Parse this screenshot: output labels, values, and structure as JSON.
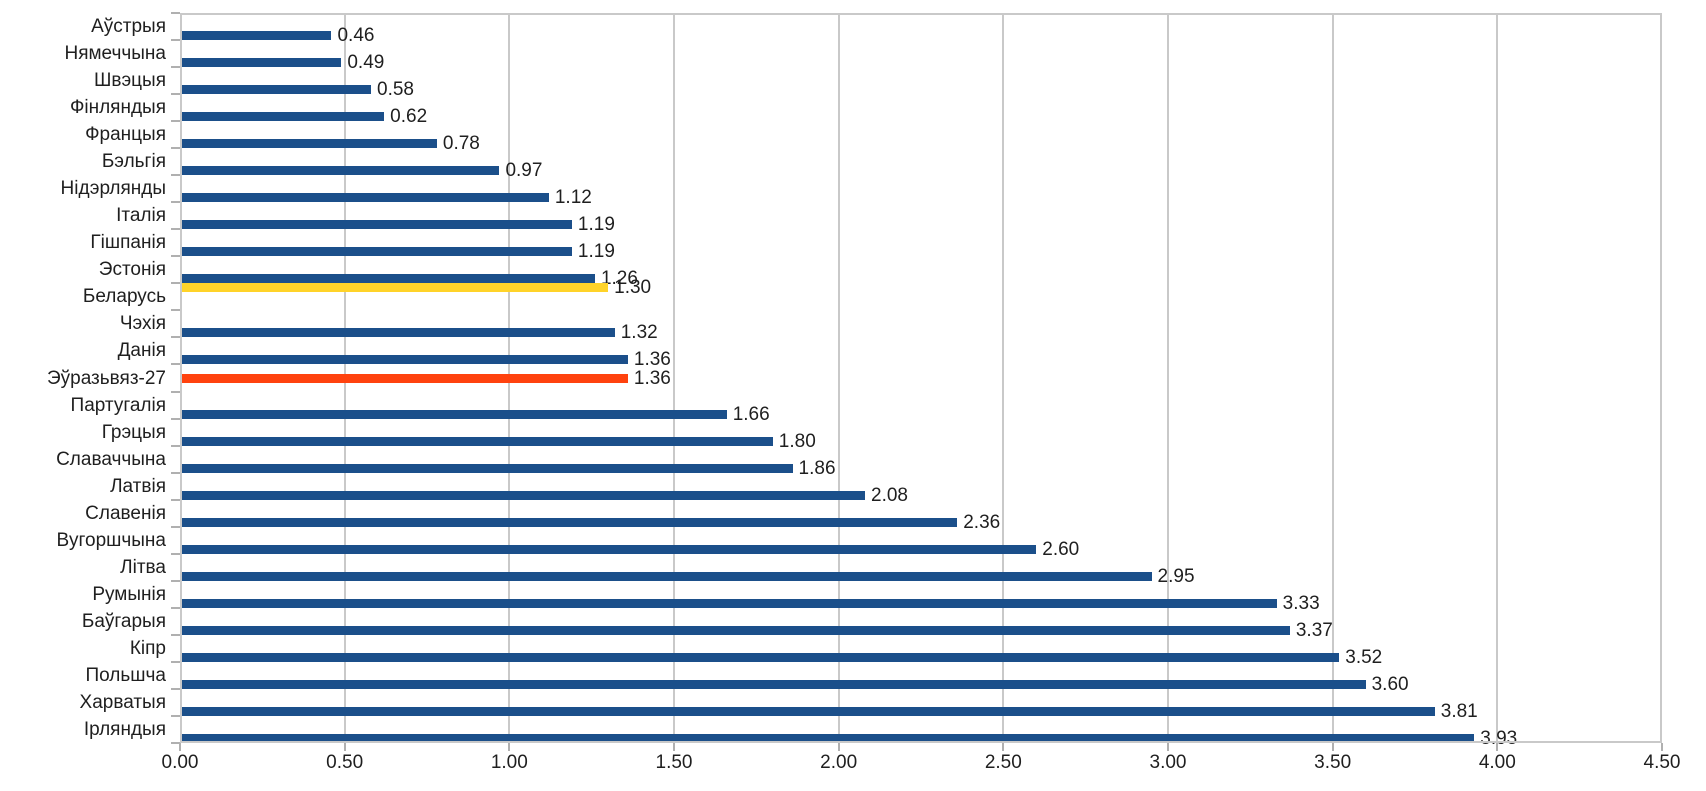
{
  "chart_data": {
    "type": "bar",
    "orientation": "horizontal",
    "title": "",
    "xlabel": "",
    "ylabel": "",
    "xlim": [
      0,
      4.5
    ],
    "x_ticks": [
      0,
      0.5,
      1.0,
      1.5,
      2.0,
      2.5,
      3.0,
      3.5,
      4.0,
      4.5
    ],
    "x_tick_labels": [
      "0.00",
      "0.50",
      "1.00",
      "1.50",
      "2.00",
      "2.50",
      "3.00",
      "3.50",
      "4.00",
      "4.50"
    ],
    "grid": "vertical-gridlines-on",
    "legend": "none",
    "value_labels": "right-of-bar, two decimals",
    "palette": {
      "blue": "#1b4f8a",
      "yellow": "#ffd329",
      "orange": "#ff420e"
    },
    "series_slots": {
      "yellow": 0,
      "orange": 1,
      "blue": 2
    },
    "bars": [
      {
        "label": "Аўстрыя",
        "value": 0.46,
        "series": "blue"
      },
      {
        "label": "Нямеччына",
        "value": 0.49,
        "series": "blue"
      },
      {
        "label": "Швэцыя",
        "value": 0.58,
        "series": "blue"
      },
      {
        "label": "Фінляндыя",
        "value": 0.62,
        "series": "blue"
      },
      {
        "label": "Францыя",
        "value": 0.78,
        "series": "blue"
      },
      {
        "label": "Бэльгія",
        "value": 0.97,
        "series": "blue"
      },
      {
        "label": "Нідэрлянды",
        "value": 1.12,
        "series": "blue"
      },
      {
        "label": "Італія",
        "value": 1.19,
        "series": "blue"
      },
      {
        "label": "Гішпанія",
        "value": 1.19,
        "series": "blue"
      },
      {
        "label": "Эстонія",
        "value": 1.26,
        "series": "blue"
      },
      {
        "label": "Беларусь",
        "value": 1.3,
        "series": "yellow"
      },
      {
        "label": "Чэхія",
        "value": 1.32,
        "series": "blue"
      },
      {
        "label": "Данія",
        "value": 1.36,
        "series": "blue"
      },
      {
        "label": "Эўразьвяз-27",
        "value": 1.36,
        "series": "orange"
      },
      {
        "label": "Партугалія",
        "value": 1.66,
        "series": "blue"
      },
      {
        "label": "Грэцыя",
        "value": 1.8,
        "series": "blue"
      },
      {
        "label": "Славаччына",
        "value": 1.86,
        "series": "blue"
      },
      {
        "label": "Латвія",
        "value": 2.08,
        "series": "blue"
      },
      {
        "label": "Славенія",
        "value": 2.36,
        "series": "blue"
      },
      {
        "label": "Вугоршчына",
        "value": 2.6,
        "series": "blue"
      },
      {
        "label": "Літва",
        "value": 2.95,
        "series": "blue"
      },
      {
        "label": "Румынія",
        "value": 3.33,
        "series": "blue"
      },
      {
        "label": "Баўгарыя",
        "value": 3.37,
        "series": "blue"
      },
      {
        "label": "Кіпр",
        "value": 3.52,
        "series": "blue"
      },
      {
        "label": "Польшча",
        "value": 3.6,
        "series": "blue"
      },
      {
        "label": "Харватыя",
        "value": 3.81,
        "series": "blue"
      },
      {
        "label": "Ірляндыя",
        "value": 3.93,
        "series": "blue"
      }
    ],
    "chart_colors": {
      "background": "#ffffff",
      "gridline": "#c9c9c9",
      "plot_border": "#c9c9c9",
      "tick_mark": "#b0b0b0",
      "text": "#1f1f1f"
    }
  }
}
